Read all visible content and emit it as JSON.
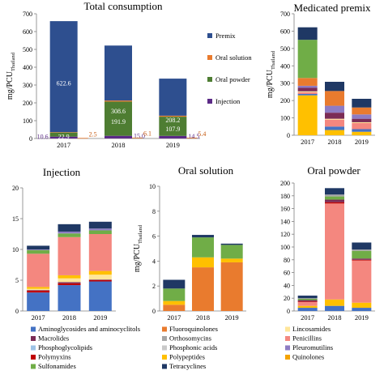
{
  "colors": {
    "Aminoglycosides and aminocyclitols": "#4472c4",
    "Macrolides": "#7b2c56",
    "Phosphoglycolipids": "#9dc3e6",
    "Polymyxins": "#c00000",
    "Sulfonamides": "#70ad47",
    "Fluoroquinolones": "#e97b2e",
    "Orthosomycins": "#a6a6a6",
    "Phosphonic acids": "#c9c9c9",
    "Polypeptides": "#ffc000",
    "Tetracyclines": "#1f3864",
    "Lincosamides": "#ffe699",
    "Penicillins": "#f4877f",
    "Pleuromutilins": "#8e7cc3",
    "Quinolones": "#f4a300",
    "Premix": "#2e4f8f",
    "Oral solution": "#e97b2e",
    "Oral powder": "#4e7d32",
    "Injection": "#5b2a86"
  },
  "chart_data": [
    {
      "id": "total",
      "type": "bar",
      "title": "Total consumption",
      "ylabel": "mg/PCU",
      "ylabel_sub": "Thailand",
      "ylim": [
        0,
        700
      ],
      "yticks": [
        0,
        100,
        200,
        300,
        400,
        500,
        600,
        700
      ],
      "categories": [
        "2017",
        "2018",
        "2019"
      ],
      "stacked": true,
      "series": [
        {
          "name": "Injection",
          "values": [
            10.6,
            15.0,
            14.5
          ]
        },
        {
          "name": "Oral powder",
          "values": [
            22.9,
            191.9,
            107.9
          ]
        },
        {
          "name": "Oral solution",
          "values": [
            2.5,
            6.1,
            5.4
          ]
        },
        {
          "name": "Premix",
          "values": [
            622.6,
            308.6,
            208.2
          ]
        }
      ],
      "legend": [
        "Premix",
        "Oral solution",
        "Oral powder",
        "Injection"
      ],
      "legend_position": "right"
    },
    {
      "id": "premix",
      "type": "bar",
      "title": "Medicated premix",
      "ylabel": "mg/PCU",
      "ylabel_sub": "Thailand",
      "ylim": [
        0,
        700
      ],
      "yticks": [
        0,
        100,
        200,
        300,
        400,
        500,
        600,
        700
      ],
      "categories": [
        "2017",
        "2018",
        "2019"
      ],
      "stacked": true,
      "series": [
        {
          "name": "Polypeptides",
          "values": [
            230,
            30,
            20
          ]
        },
        {
          "name": "Aminoglycosides and aminocyclitols",
          "values": [
            8,
            20,
            15
          ]
        },
        {
          "name": "Penicillins",
          "values": [
            10,
            40,
            35
          ]
        },
        {
          "name": "Lincosamides",
          "values": [
            5,
            5,
            5
          ]
        },
        {
          "name": "Macrolides",
          "values": [
            20,
            35,
            20
          ]
        },
        {
          "name": "Pleuromutilins",
          "values": [
            12,
            40,
            25
          ]
        },
        {
          "name": "Fluoroquinolones",
          "values": [
            45,
            85,
            40
          ]
        },
        {
          "name": "Sulfonamides",
          "values": [
            220,
            0,
            0
          ]
        },
        {
          "name": "Tetracyclines",
          "values": [
            72,
            53,
            50
          ]
        }
      ]
    },
    {
      "id": "injection",
      "type": "bar",
      "title": "Injection",
      "ylim": [
        0,
        20
      ],
      "yticks": [
        0,
        5,
        10,
        15,
        20
      ],
      "categories": [
        "2017",
        "2018",
        "2019"
      ],
      "stacked": true,
      "series": [
        {
          "name": "Aminoglycosides and aminocyclitols",
          "values": [
            3.0,
            4.2,
            4.8
          ]
        },
        {
          "name": "Polymyxins",
          "values": [
            0.3,
            0.3,
            0.2
          ]
        },
        {
          "name": "Macrolides",
          "values": [
            0.1,
            0.2,
            0.1
          ]
        },
        {
          "name": "Lincosamides",
          "values": [
            0.2,
            0.6,
            0.8
          ]
        },
        {
          "name": "Polypeptides",
          "values": [
            0.3,
            0.5,
            0.6
          ]
        },
        {
          "name": "Penicillins",
          "values": [
            5.4,
            6.2,
            6.0
          ]
        },
        {
          "name": "Sulfonamides",
          "values": [
            0.6,
            0.6,
            0.6
          ]
        },
        {
          "name": "Pleuromutilins",
          "values": [
            0.1,
            0.3,
            0.3
          ]
        },
        {
          "name": "Tetracyclines",
          "values": [
            0.6,
            1.2,
            1.1
          ]
        }
      ]
    },
    {
      "id": "oral_solution",
      "type": "bar",
      "title": "Oral solution",
      "ylabel": "mg/PCU",
      "ylabel_sub": "Thailand",
      "ylim": [
        0,
        10
      ],
      "yticks": [
        0,
        2,
        4,
        6,
        8,
        10
      ],
      "categories": [
        "2017",
        "2018",
        "2019"
      ],
      "stacked": true,
      "series": [
        {
          "name": "Fluoroquinolones",
          "values": [
            0.5,
            3.5,
            3.9
          ]
        },
        {
          "name": "Polypeptides",
          "values": [
            0.3,
            0.8,
            0.3
          ]
        },
        {
          "name": "Sulfonamides",
          "values": [
            1.0,
            1.6,
            1.1
          ]
        },
        {
          "name": "Tetracyclines",
          "values": [
            0.7,
            0.2,
            0.1
          ]
        }
      ]
    },
    {
      "id": "oral_powder",
      "type": "bar",
      "title": "Oral powder",
      "ylim": [
        0,
        200
      ],
      "yticks": [
        0,
        20,
        40,
        60,
        80,
        100,
        120,
        140,
        160,
        180,
        200
      ],
      "categories": [
        "2017",
        "2018",
        "2019"
      ],
      "stacked": true,
      "series": [
        {
          "name": "Aminoglycosides and aminocyclitols",
          "values": [
            5,
            8,
            5
          ]
        },
        {
          "name": "Polypeptides",
          "values": [
            3,
            10,
            8
          ]
        },
        {
          "name": "Penicillins",
          "values": [
            6,
            150,
            66
          ]
        },
        {
          "name": "Polymyxins",
          "values": [
            1,
            2,
            1
          ]
        },
        {
          "name": "Macrolides",
          "values": [
            2,
            4,
            2
          ]
        },
        {
          "name": "Sulfonamides",
          "values": [
            2,
            5,
            12
          ]
        },
        {
          "name": "Orthosomycins",
          "values": [
            1,
            3,
            2
          ]
        },
        {
          "name": "Tetracyclines",
          "values": [
            4,
            10,
            11
          ]
        }
      ]
    }
  ],
  "legend": [
    [
      "Aminoglycosides and aminocyclitols",
      "Fluoroquinolones",
      "Lincosamides"
    ],
    [
      "Macrolides",
      "Orthosomycins",
      "Penicillins"
    ],
    [
      "Phosphoglycolipids",
      "Phosphonic acids",
      "Pleuromutilins"
    ],
    [
      "Polymyxins",
      "Polypeptides",
      "Quinolones"
    ],
    [
      "Sulfonamides",
      "Tetracyclines",
      ""
    ]
  ]
}
